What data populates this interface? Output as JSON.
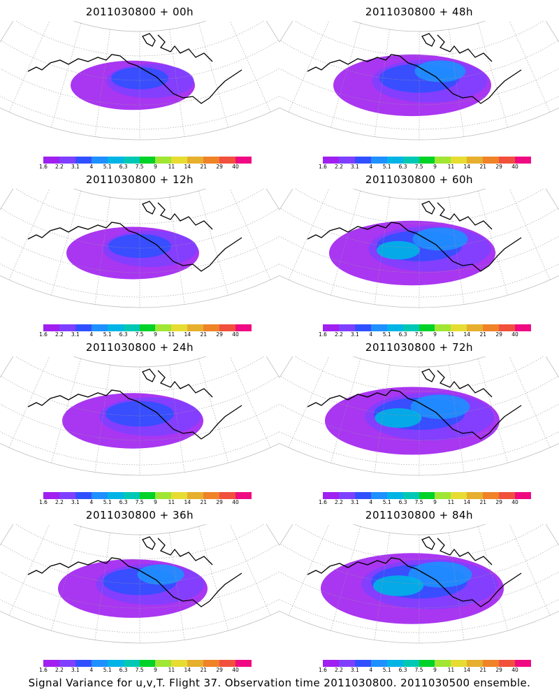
{
  "panels": [
    {
      "title": "2011030800 + 00h",
      "lead": "00h",
      "intensity": 0.15
    },
    {
      "title": "2011030800 + 48h",
      "lead": "48h",
      "intensity": 0.55
    },
    {
      "title": "2011030800 + 12h",
      "lead": "12h",
      "intensity": 0.25
    },
    {
      "title": "2011030800 + 60h",
      "lead": "60h",
      "intensity": 0.65
    },
    {
      "title": "2011030800 + 24h",
      "lead": "24h",
      "intensity": 0.35
    },
    {
      "title": "2011030800 + 72h",
      "lead": "72h",
      "intensity": 0.75
    },
    {
      "title": "2011030800 + 36h",
      "lead": "36h",
      "intensity": 0.45
    },
    {
      "title": "2011030800 + 84h",
      "lead": "84h",
      "intensity": 0.85
    }
  ],
  "colorbar": {
    "colors": [
      "#a020f0",
      "#7f3fff",
      "#3050ff",
      "#1e90ff",
      "#00b4e6",
      "#00c8b4",
      "#00d228",
      "#a0e632",
      "#e6dc32",
      "#e6af2d",
      "#f08228",
      "#f0503c",
      "#f00a82"
    ],
    "labels": [
      "1.6",
      "2.2",
      "3.1",
      "4",
      "5.1",
      "6.3",
      "7.5",
      "9",
      "11",
      "14",
      "21",
      "29",
      "40"
    ]
  },
  "caption": "Signal Variance for u,v,T. Flight 37. Observation time 2011030800. 2011030500 ensemble."
}
